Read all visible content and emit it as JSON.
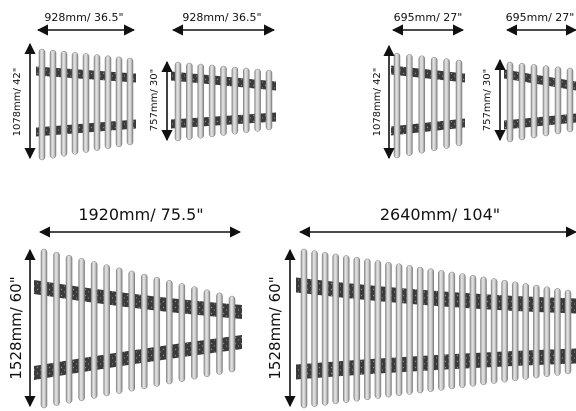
{
  "diagram": {
    "colors": {
      "rail": "#c9c9c9",
      "rail_edge": "#7a7a7a",
      "sleeper": "#3a3a3a",
      "sleeper_speckle": "#8a8a8a",
      "arrow": "#111111"
    },
    "panels": [
      {
        "id": "small-a",
        "width_label": "928mm/ 36.5\"",
        "height_label": "1078mm/ 42\""
      },
      {
        "id": "small-b",
        "width_label": "928mm/ 36.5\"",
        "height_label": "757mm/ 30\""
      },
      {
        "id": "small-c",
        "width_label": "695mm/ 27\"",
        "height_label": "1078mm/ 42\""
      },
      {
        "id": "small-d",
        "width_label": "695mm/ 27\"",
        "height_label": "757mm/ 30\""
      },
      {
        "id": "large-a",
        "width_label": "1920mm/ 75.5\"",
        "height_label": "1528mm/ 60\""
      },
      {
        "id": "large-b",
        "width_label": "2640mm/ 104\"",
        "height_label": "1528mm/ 60\""
      }
    ]
  }
}
